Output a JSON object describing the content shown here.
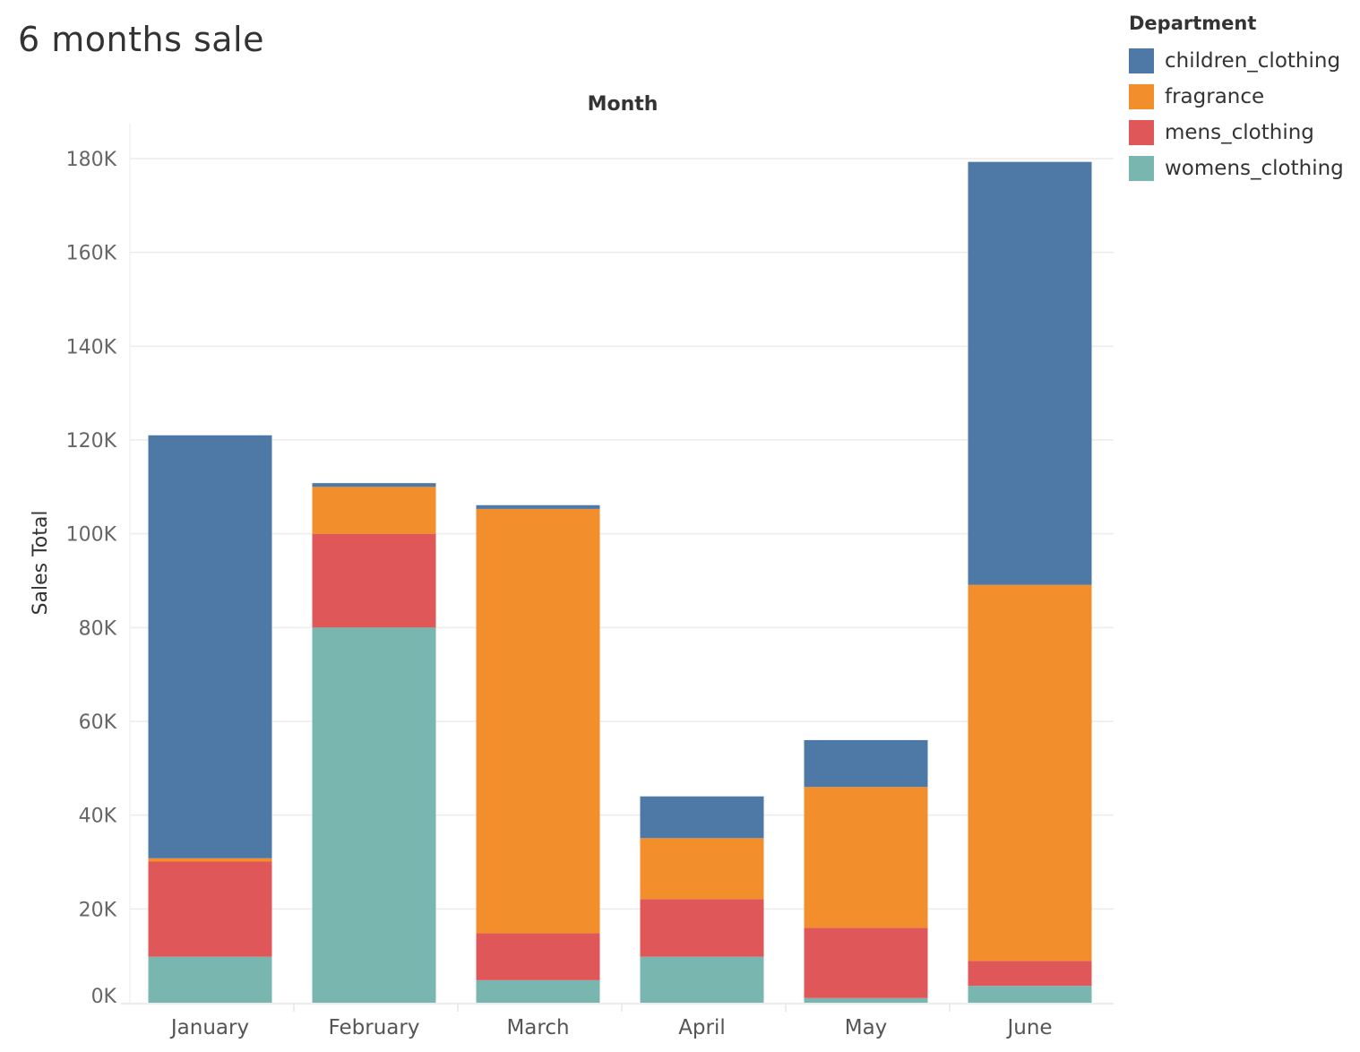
{
  "chart_data": {
    "type": "bar",
    "stacked": true,
    "title": "6 months sale",
    "column_header": "Month",
    "ylabel": "Sales Total",
    "xlabel": "",
    "categories": [
      "January",
      "February",
      "March",
      "April",
      "May",
      "June"
    ],
    "ylim": [
      0,
      185000
    ],
    "y_ticks": [
      0,
      20000,
      40000,
      60000,
      80000,
      100000,
      120000,
      140000,
      160000,
      180000
    ],
    "y_tick_labels": [
      "0K",
      "20K",
      "40K",
      "60K",
      "80K",
      "100K",
      "120K",
      "140K",
      "160K",
      "180K"
    ],
    "grid": true,
    "legend": {
      "title": "Department",
      "placement": "top-right"
    },
    "series": [
      {
        "name": "womens_clothing",
        "color": "#7ab6b0",
        "values": [
          9800,
          80000,
          4800,
          9800,
          1000,
          3600
        ]
      },
      {
        "name": "mens_clothing",
        "color": "#e05759",
        "values": [
          20300,
          20000,
          10000,
          12300,
          15000,
          5300
        ]
      },
      {
        "name": "fragrance",
        "color": "#f28e2c",
        "values": [
          700,
          10000,
          90500,
          13000,
          30000,
          80200
        ]
      },
      {
        "name": "children_clothing",
        "color": "#4e79a7",
        "values": [
          90200,
          800,
          800,
          8900,
          10000,
          90200
        ]
      }
    ],
    "legend_order": [
      "children_clothing",
      "fragrance",
      "mens_clothing",
      "womens_clothing"
    ]
  }
}
